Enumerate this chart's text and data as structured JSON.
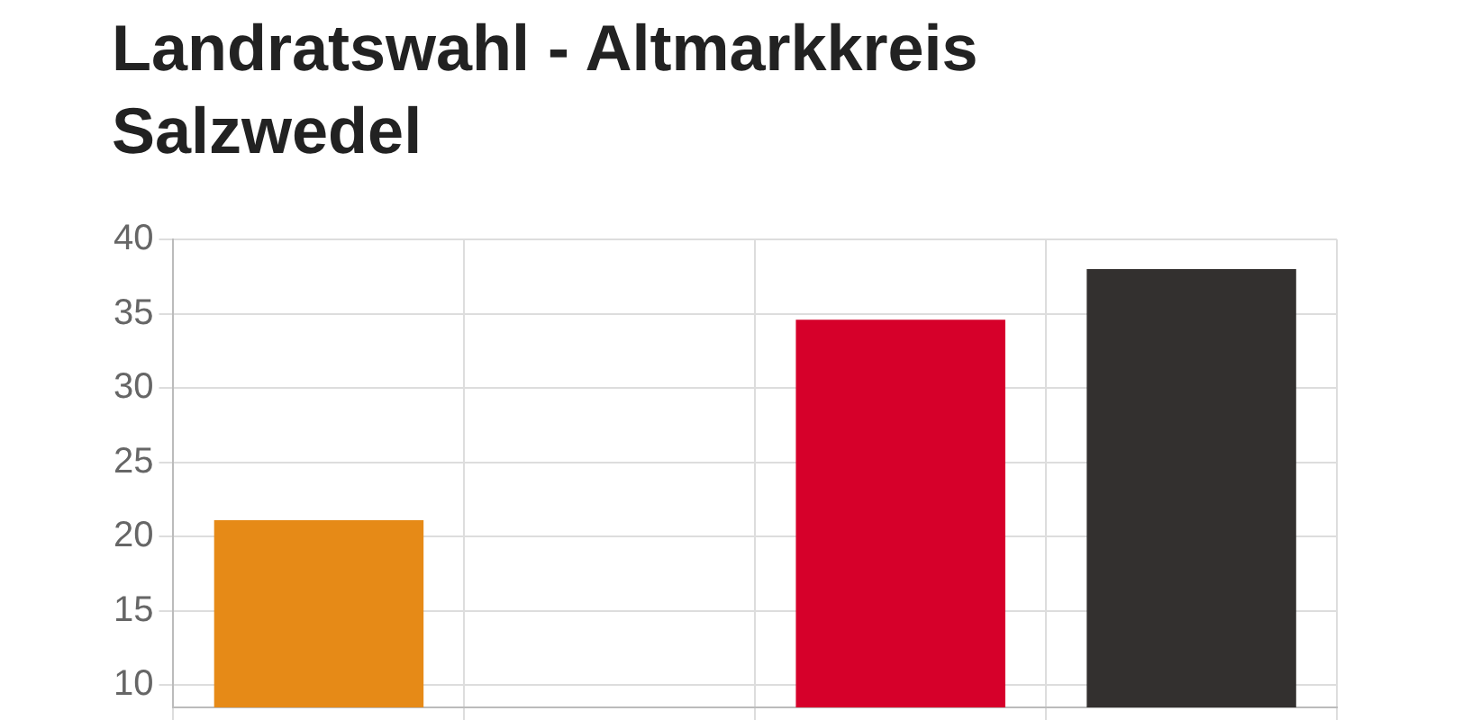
{
  "chart_data": {
    "type": "bar",
    "title": "Landratswahl - Altmarkkreis Salzwedel",
    "categories": [
      null,
      null,
      null,
      null
    ],
    "values": [
      21.1,
      null,
      34.6,
      38.0
    ],
    "colors": [
      "#e68a17",
      "#cccccc",
      "#d6002a",
      "#33302f"
    ],
    "ylim": [
      8.5,
      40
    ],
    "yticks": [
      10,
      15,
      20,
      25,
      30,
      35,
      40
    ],
    "grid": true,
    "tick_labels": "y"
  }
}
